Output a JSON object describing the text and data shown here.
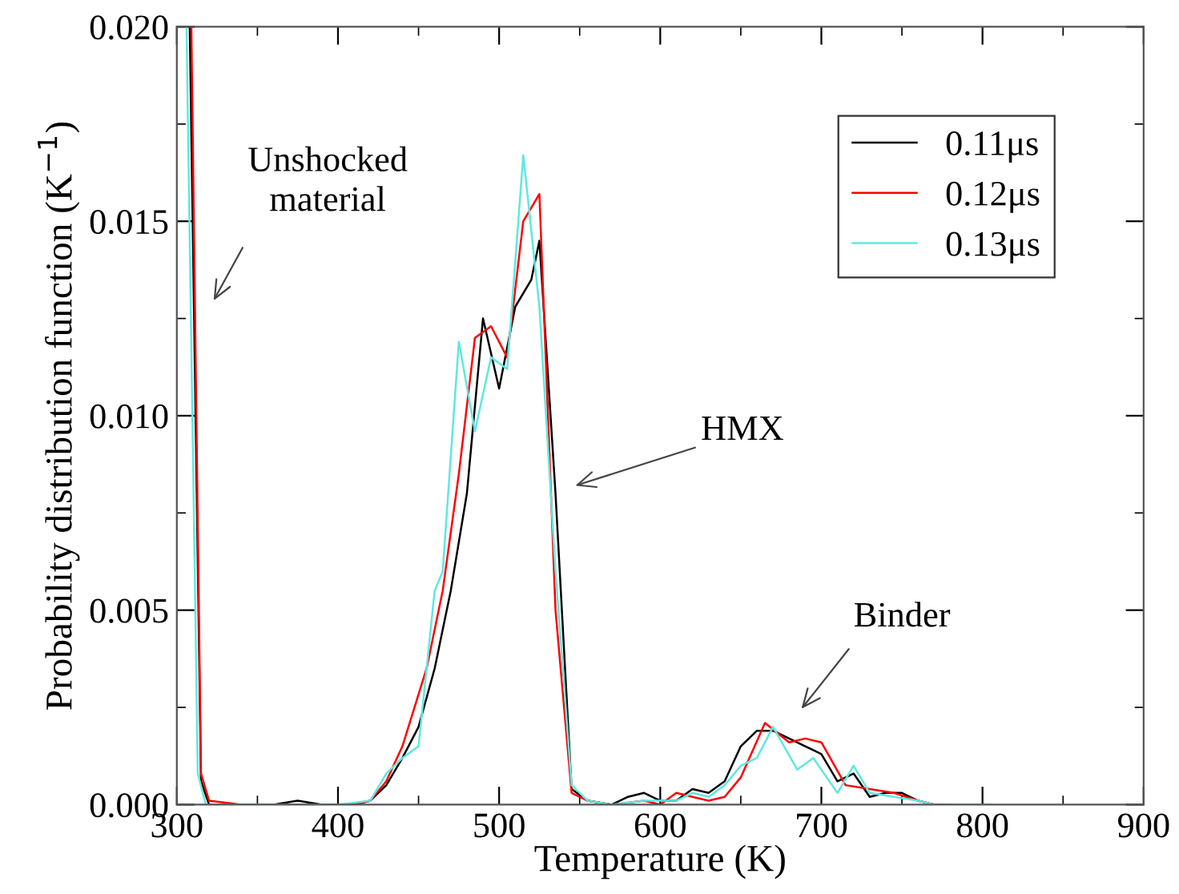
{
  "chart_data": {
    "type": "line",
    "xlabel": "Temperature (K)",
    "ylabel": "Probability distribution function (K$^{−1}$)",
    "xlim": [
      300,
      900
    ],
    "ylim": [
      0,
      0.02
    ],
    "xticks": [
      300,
      {
        "value": 350,
        "label": null
      },
      400,
      {
        "value": 450,
        "label": null
      },
      500,
      {
        "value": 550,
        "label": null
      },
      600,
      {
        "value": 650,
        "label": null
      },
      700,
      {
        "value": 750,
        "label": null
      },
      800,
      {
        "value": 850,
        "label": null
      },
      900
    ],
    "yticks": [
      {
        "value": 0,
        "label": "0.000"
      },
      {
        "value": 0.0025,
        "label": null
      },
      {
        "value": 0.005,
        "label": "0.005"
      },
      {
        "value": 0.0075,
        "label": null
      },
      {
        "value": 0.01,
        "label": "0.010"
      },
      {
        "value": 0.0125,
        "label": null
      },
      {
        "value": 0.015,
        "label": "0.015"
      },
      {
        "value": 0.0175,
        "label": null
      },
      {
        "value": 0.02,
        "label": "0.020"
      }
    ],
    "grid": false,
    "legend": "top right",
    "marker": "none",
    "line_style": "solid",
    "annotations": [
      "Unshocked\nmaterial",
      "HMX",
      "Binder"
    ],
    "series": [
      {
        "name": "0.11μs",
        "color": "#000000",
        "x": [
          308,
          315,
          320,
          340,
          360,
          375,
          390,
          410,
          420,
          430,
          440,
          450,
          460,
          470,
          480,
          490,
          500,
          510,
          520,
          525,
          535,
          545,
          555,
          570,
          580,
          590,
          600,
          610,
          620,
          630,
          640,
          650,
          660,
          670,
          680,
          690,
          700,
          710,
          720,
          730,
          740,
          750,
          760,
          770,
          780
        ],
        "values": [
          0.02,
          0.0006,
          0.0,
          0.0,
          0.0,
          0.0001,
          0.0,
          0.0,
          0.0001,
          0.0005,
          0.0012,
          0.002,
          0.0035,
          0.0055,
          0.008,
          0.0125,
          0.0107,
          0.0128,
          0.0135,
          0.0145,
          0.008,
          0.0004,
          0.0001,
          0.0,
          0.0002,
          0.0003,
          0.0001,
          0.0001,
          0.0004,
          0.0003,
          0.0006,
          0.0015,
          0.0019,
          0.0019,
          0.0017,
          0.0015,
          0.0013,
          0.0006,
          0.0008,
          0.0002,
          0.0003,
          0.0003,
          0.0001,
          0.0,
          0.0
        ]
      },
      {
        "name": "0.12μs",
        "color": "#ff0000",
        "x": [
          309,
          315,
          320,
          340,
          360,
          380,
          400,
          410,
          420,
          430,
          440,
          455,
          465,
          475,
          485,
          495,
          505,
          515,
          525,
          535,
          545,
          555,
          570,
          590,
          600,
          610,
          620,
          630,
          640,
          650,
          665,
          680,
          690,
          700,
          715,
          730,
          745,
          760,
          770,
          780
        ],
        "values": [
          0.02,
          0.0008,
          0.0001,
          0.0,
          0.0,
          0.0,
          0.0,
          0.0,
          0.0001,
          0.0006,
          0.0015,
          0.0035,
          0.0055,
          0.0085,
          0.012,
          0.0123,
          0.0115,
          0.015,
          0.0157,
          0.005,
          0.0003,
          0.0001,
          0.0,
          0.0001,
          0.0,
          0.0003,
          0.0002,
          0.0001,
          0.0002,
          0.0007,
          0.0021,
          0.0016,
          0.0017,
          0.0016,
          0.0005,
          0.0004,
          0.0003,
          0.0001,
          0.0,
          0.0
        ]
      },
      {
        "name": "0.13μs",
        "color": "#5fe8e0",
        "x": [
          306,
          313,
          318,
          340,
          360,
          380,
          400,
          420,
          430,
          440,
          450,
          460,
          465,
          475,
          485,
          495,
          505,
          515,
          525,
          535,
          545,
          555,
          570,
          590,
          600,
          610,
          620,
          630,
          640,
          650,
          660,
          670,
          685,
          695,
          710,
          720,
          730,
          745,
          760,
          770,
          800,
          805
        ],
        "values": [
          0.02,
          0.0008,
          0.0,
          0.0,
          0.0,
          0.0,
          0.0,
          0.0001,
          0.0008,
          0.0012,
          0.0015,
          0.0055,
          0.006,
          0.0119,
          0.0096,
          0.0115,
          0.0112,
          0.0167,
          0.0128,
          0.006,
          0.0005,
          0.0001,
          0.0,
          0.0001,
          0.0001,
          0.0001,
          0.0003,
          0.0002,
          0.0005,
          0.001,
          0.0012,
          0.002,
          0.0009,
          0.0012,
          0.0003,
          0.001,
          0.0003,
          0.0002,
          0.0001,
          0.0,
          0.0,
          0.0
        ]
      }
    ]
  }
}
